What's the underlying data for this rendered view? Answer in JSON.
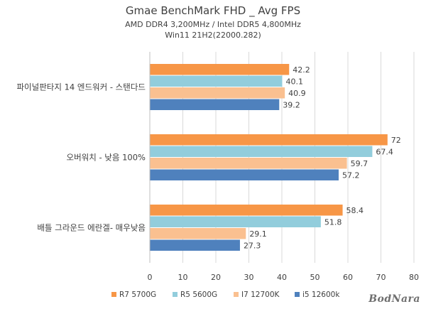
{
  "chart_data": {
    "type": "bar",
    "orientation": "horizontal",
    "title": "Gmae BenchMark FHD _ Avg FPS",
    "subtitle": [
      "AMD DDR4 3,200MHz / Intel DDR5 4,800MHz",
      "Win11 21H2(22000.282)"
    ],
    "categories": [
      "파이널판타지 14 엔드워커 - 스탠다드",
      "오버워치 - 낮음 100%",
      "배틀 그라운드 에란겔- 매우낮음"
    ],
    "series": [
      {
        "name": "R7 5700G",
        "color": "#F79646",
        "values": [
          42.2,
          72,
          58.4
        ]
      },
      {
        "name": "R5 5600G",
        "color": "#92CDDC",
        "values": [
          40.1,
          67.4,
          51.8
        ]
      },
      {
        "name": "I7 12700K",
        "color": "#FAC090",
        "values": [
          40.9,
          59.7,
          29.1
        ]
      },
      {
        "name": "i5 12600k",
        "color": "#4F81BD",
        "values": [
          39.2,
          57.2,
          27.3
        ]
      }
    ],
    "value_labels": [
      [
        "42.2",
        "72",
        "58.4"
      ],
      [
        "40.1",
        "67.4",
        "51.8"
      ],
      [
        "40.9",
        "59.7",
        "29.1"
      ],
      [
        "39.2",
        "57.2",
        "27.3"
      ]
    ],
    "xlim": [
      0,
      80
    ],
    "xticks": [
      0,
      10,
      20,
      30,
      40,
      50,
      60,
      70,
      80
    ],
    "xtick_labels": [
      "0",
      "10",
      "20",
      "30",
      "40",
      "50",
      "60",
      "70",
      "80"
    ],
    "grid": true,
    "legend_position": "bottom"
  },
  "watermark": "BodNara"
}
